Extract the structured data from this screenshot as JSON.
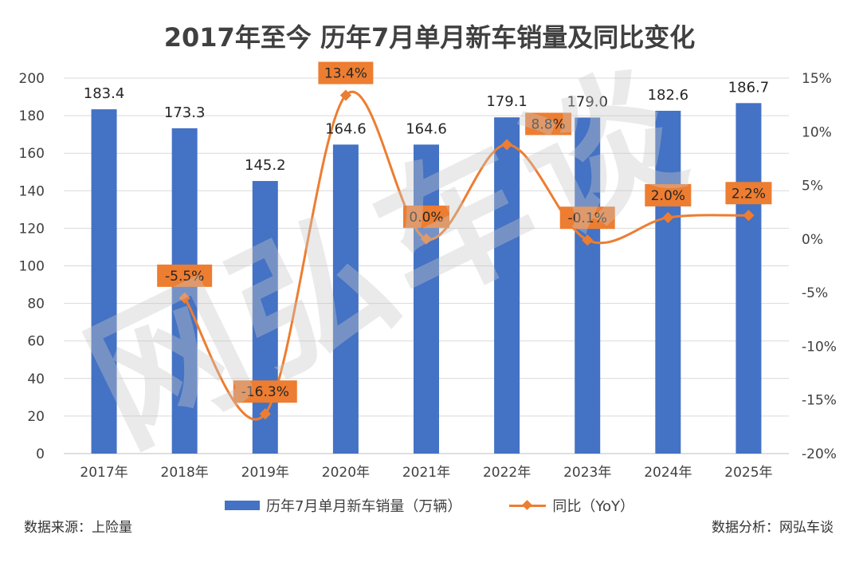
{
  "title": "2017年至今 历年7月单月新车销量及同比变化",
  "watermark": "网弘车谈",
  "source": "数据来源：上险量",
  "analysis": "数据分析：网弘车谈",
  "colors": {
    "bar": "#4472C4",
    "line": "#ED7D31",
    "label_bg": "#ED7D31"
  },
  "chart_data": {
    "type": "bar",
    "categories": [
      "2017年",
      "2018年",
      "2019年",
      "2020年",
      "2021年",
      "2022年",
      "2023年",
      "2024年",
      "2025年"
    ],
    "series": [
      {
        "name": "历年7月单月新车销量（万辆）",
        "type": "bar",
        "axis": "left",
        "values": [
          183.4,
          173.3,
          145.2,
          164.6,
          164.6,
          179.1,
          179.0,
          182.6,
          186.7
        ],
        "labels": [
          "183.4",
          "173.3",
          "145.2",
          "164.6",
          "164.6",
          "179.1",
          "179.0",
          "182.6",
          "186.7"
        ]
      },
      {
        "name": "同比（YoY）",
        "type": "line",
        "axis": "right",
        "values": [
          null,
          -5.5,
          -16.3,
          13.4,
          0.0,
          8.8,
          -0.1,
          2.0,
          2.2
        ],
        "labels": [
          "",
          "-5.5%",
          "-16.3%",
          "13.4%",
          "0.0%",
          "8.8%",
          "-0.1%",
          "2.0%",
          "2.2%"
        ]
      }
    ],
    "y_left": {
      "min": 0,
      "max": 200,
      "ticks": [
        "0",
        "20",
        "40",
        "60",
        "80",
        "100",
        "120",
        "140",
        "160",
        "180",
        "200"
      ]
    },
    "y_right": {
      "min": -20,
      "max": 15,
      "ticks": [
        "-20%",
        "-15%",
        "-10%",
        "-5%",
        "0%",
        "5%",
        "10%",
        "15%"
      ]
    },
    "grid": true,
    "legend_position": "bottom"
  }
}
